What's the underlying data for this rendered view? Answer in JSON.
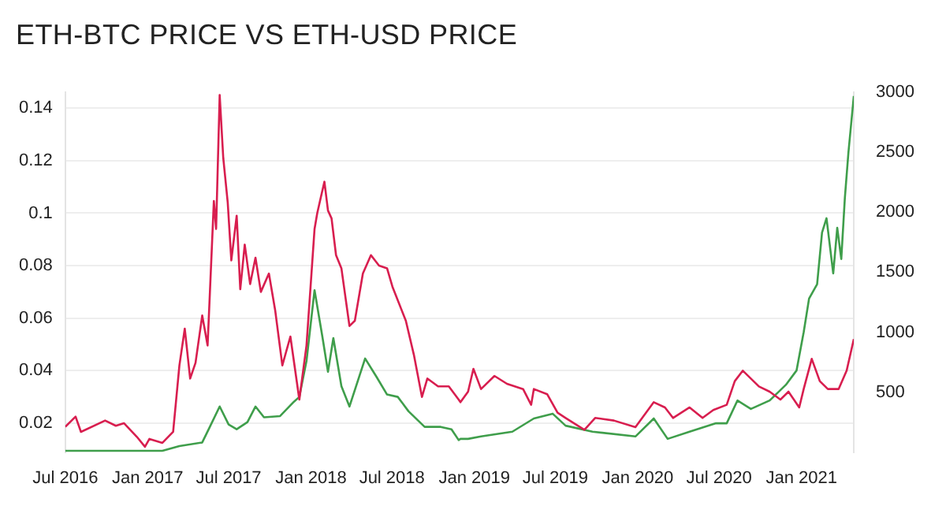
{
  "chart_data": {
    "type": "line",
    "title": "ETH-BTC PRICE VS ETH-USD PRICE",
    "xlim": [
      "2016-07-01",
      "2021-04-28"
    ],
    "xticks": [
      {
        "value": "2016-07-01",
        "label": "Jul 2016"
      },
      {
        "value": "2017-01-01",
        "label": "Jan 2017"
      },
      {
        "value": "2017-07-01",
        "label": "Jul 2017"
      },
      {
        "value": "2018-01-01",
        "label": "Jan 2018"
      },
      {
        "value": "2018-07-01",
        "label": "Jul 2018"
      },
      {
        "value": "2019-01-01",
        "label": "Jan 2019"
      },
      {
        "value": "2019-07-01",
        "label": "Jul 2019"
      },
      {
        "value": "2020-01-01",
        "label": "Jan 2020"
      },
      {
        "value": "2020-07-01",
        "label": "Jul 2020"
      },
      {
        "value": "2021-01-01",
        "label": "Jan 2021"
      }
    ],
    "ylim": [
      0.009,
      0.146
    ],
    "yticks": [
      0.02,
      0.04,
      0.06,
      0.08,
      0.1,
      0.12,
      0.14
    ],
    "y2lim": [
      0,
      3000
    ],
    "y2ticks": [
      500,
      1000,
      1500,
      2000,
      2500,
      3000
    ],
    "grid": "y",
    "marker": "none",
    "line_style": "solid",
    "series": [
      {
        "color": "#d81e4f",
        "x": [
          "2016-07-01",
          "2016-07-24",
          "2016-08-05",
          "2016-09-28",
          "2016-10-22",
          "2016-11-09",
          "2016-12-08",
          "2016-12-26",
          "2017-01-05",
          "2017-02-03",
          "2017-02-27",
          "2017-03-13",
          "2017-03-25",
          "2017-04-06",
          "2017-04-18",
          "2017-05-03",
          "2017-05-15",
          "2017-05-29",
          "2017-06-03",
          "2017-06-11",
          "2017-06-19",
          "2017-06-29",
          "2017-07-07",
          "2017-07-19",
          "2017-07-27",
          "2017-08-06",
          "2017-08-18",
          "2017-08-30",
          "2017-09-11",
          "2017-09-29",
          "2017-10-13",
          "2017-10-29",
          "2017-11-16",
          "2017-12-06",
          "2017-12-22",
          "2018-01-09",
          "2018-01-15",
          "2018-01-31",
          "2018-02-08",
          "2018-02-16",
          "2018-02-26",
          "2018-03-10",
          "2018-03-28",
          "2018-04-09",
          "2018-04-27",
          "2018-05-15",
          "2018-06-02",
          "2018-06-20",
          "2018-07-02",
          "2018-08-01",
          "2018-08-19",
          "2018-09-06",
          "2018-09-18",
          "2018-10-12",
          "2018-11-05",
          "2018-11-27",
          "2018-12-01",
          "2018-12-18",
          "2018-12-30",
          "2019-01-16",
          "2019-02-15",
          "2019-03-15",
          "2019-04-20",
          "2019-05-08",
          "2019-05-14",
          "2019-06-13",
          "2019-07-06",
          "2019-07-24",
          "2019-09-04",
          "2019-09-28",
          "2019-11-09",
          "2019-12-27",
          "2020-02-06",
          "2020-03-02",
          "2020-03-20",
          "2020-04-26",
          "2020-05-25",
          "2020-06-18",
          "2020-07-18",
          "2020-08-05",
          "2020-08-23",
          "2020-09-10",
          "2020-09-28",
          "2020-10-22",
          "2020-11-15",
          "2020-12-03",
          "2020-12-27",
          "2021-01-06",
          "2021-01-24",
          "2021-02-11",
          "2021-03-01",
          "2021-03-25",
          "2021-04-12",
          "2021-04-28"
        ],
        "values": [
          0.0186,
          0.0225,
          0.0167,
          0.021,
          0.019,
          0.02,
          0.0148,
          0.011,
          0.014,
          0.0125,
          0.0167,
          0.042,
          0.056,
          0.037,
          0.043,
          0.061,
          0.0496,
          0.1046,
          0.094,
          0.145,
          0.121,
          0.104,
          0.082,
          0.099,
          0.071,
          0.088,
          0.073,
          0.083,
          0.07,
          0.077,
          0.063,
          0.042,
          0.053,
          0.029,
          0.0496,
          0.094,
          0.1,
          0.112,
          0.101,
          0.098,
          0.084,
          0.079,
          0.057,
          0.059,
          0.077,
          0.084,
          0.08,
          0.079,
          0.072,
          0.059,
          0.046,
          0.03,
          0.037,
          0.034,
          0.034,
          0.029,
          0.028,
          0.032,
          0.0407,
          0.033,
          0.038,
          0.035,
          0.033,
          0.027,
          0.033,
          0.031,
          0.024,
          0.022,
          0.0175,
          0.022,
          0.021,
          0.0185,
          0.028,
          0.026,
          0.022,
          0.026,
          0.022,
          0.025,
          0.027,
          0.036,
          0.04,
          0.037,
          0.034,
          0.032,
          0.029,
          0.032,
          0.026,
          0.033,
          0.0445,
          0.036,
          0.033,
          0.033,
          0.04,
          0.052
        ]
      },
      {
        "color": "#3f9e4b",
        "axis": "y2",
        "x": [
          "2016-07-01",
          "2017-02-03",
          "2017-03-13",
          "2017-05-03",
          "2017-05-20",
          "2017-06-11",
          "2017-07-01",
          "2017-07-19",
          "2017-08-12",
          "2017-08-30",
          "2017-09-18",
          "2017-10-24",
          "2017-11-24",
          "2017-12-06",
          "2017-12-22",
          "2018-01-09",
          "2018-01-27",
          "2018-02-08",
          "2018-02-20",
          "2018-03-10",
          "2018-03-28",
          "2018-05-02",
          "2018-05-27",
          "2018-06-20",
          "2018-07-14",
          "2018-08-07",
          "2018-09-12",
          "2018-10-18",
          "2018-11-11",
          "2018-11-27",
          "2018-12-01",
          "2018-12-18",
          "2019-01-16",
          "2019-03-27",
          "2019-05-14",
          "2019-06-25",
          "2019-07-24",
          "2019-09-22",
          "2019-12-27",
          "2020-02-06",
          "2020-03-08",
          "2020-04-26",
          "2020-06-24",
          "2020-07-18",
          "2020-08-11",
          "2020-09-10",
          "2020-10-22",
          "2020-11-27",
          "2020-12-21",
          "2021-01-06",
          "2021-01-18",
          "2021-02-05",
          "2021-02-16",
          "2021-02-26",
          "2021-03-13",
          "2021-03-22",
          "2021-03-31",
          "2021-04-08",
          "2021-04-16",
          "2021-04-28"
        ],
        "values": [
          10,
          10,
          50,
          80,
          210,
          380,
          230,
          190,
          250,
          380,
          290,
          300,
          420,
          460,
          760,
          1350,
          950,
          670,
          950,
          550,
          380,
          780,
          630,
          480,
          460,
          340,
          210,
          210,
          190,
          100,
          110,
          110,
          130,
          170,
          280,
          320,
          220,
          170,
          130,
          280,
          110,
          170,
          240,
          240,
          430,
          360,
          430,
          560,
          680,
          1000,
          1280,
          1400,
          1830,
          1950,
          1490,
          1870,
          1610,
          2120,
          2500,
          2970
        ]
      }
    ]
  }
}
